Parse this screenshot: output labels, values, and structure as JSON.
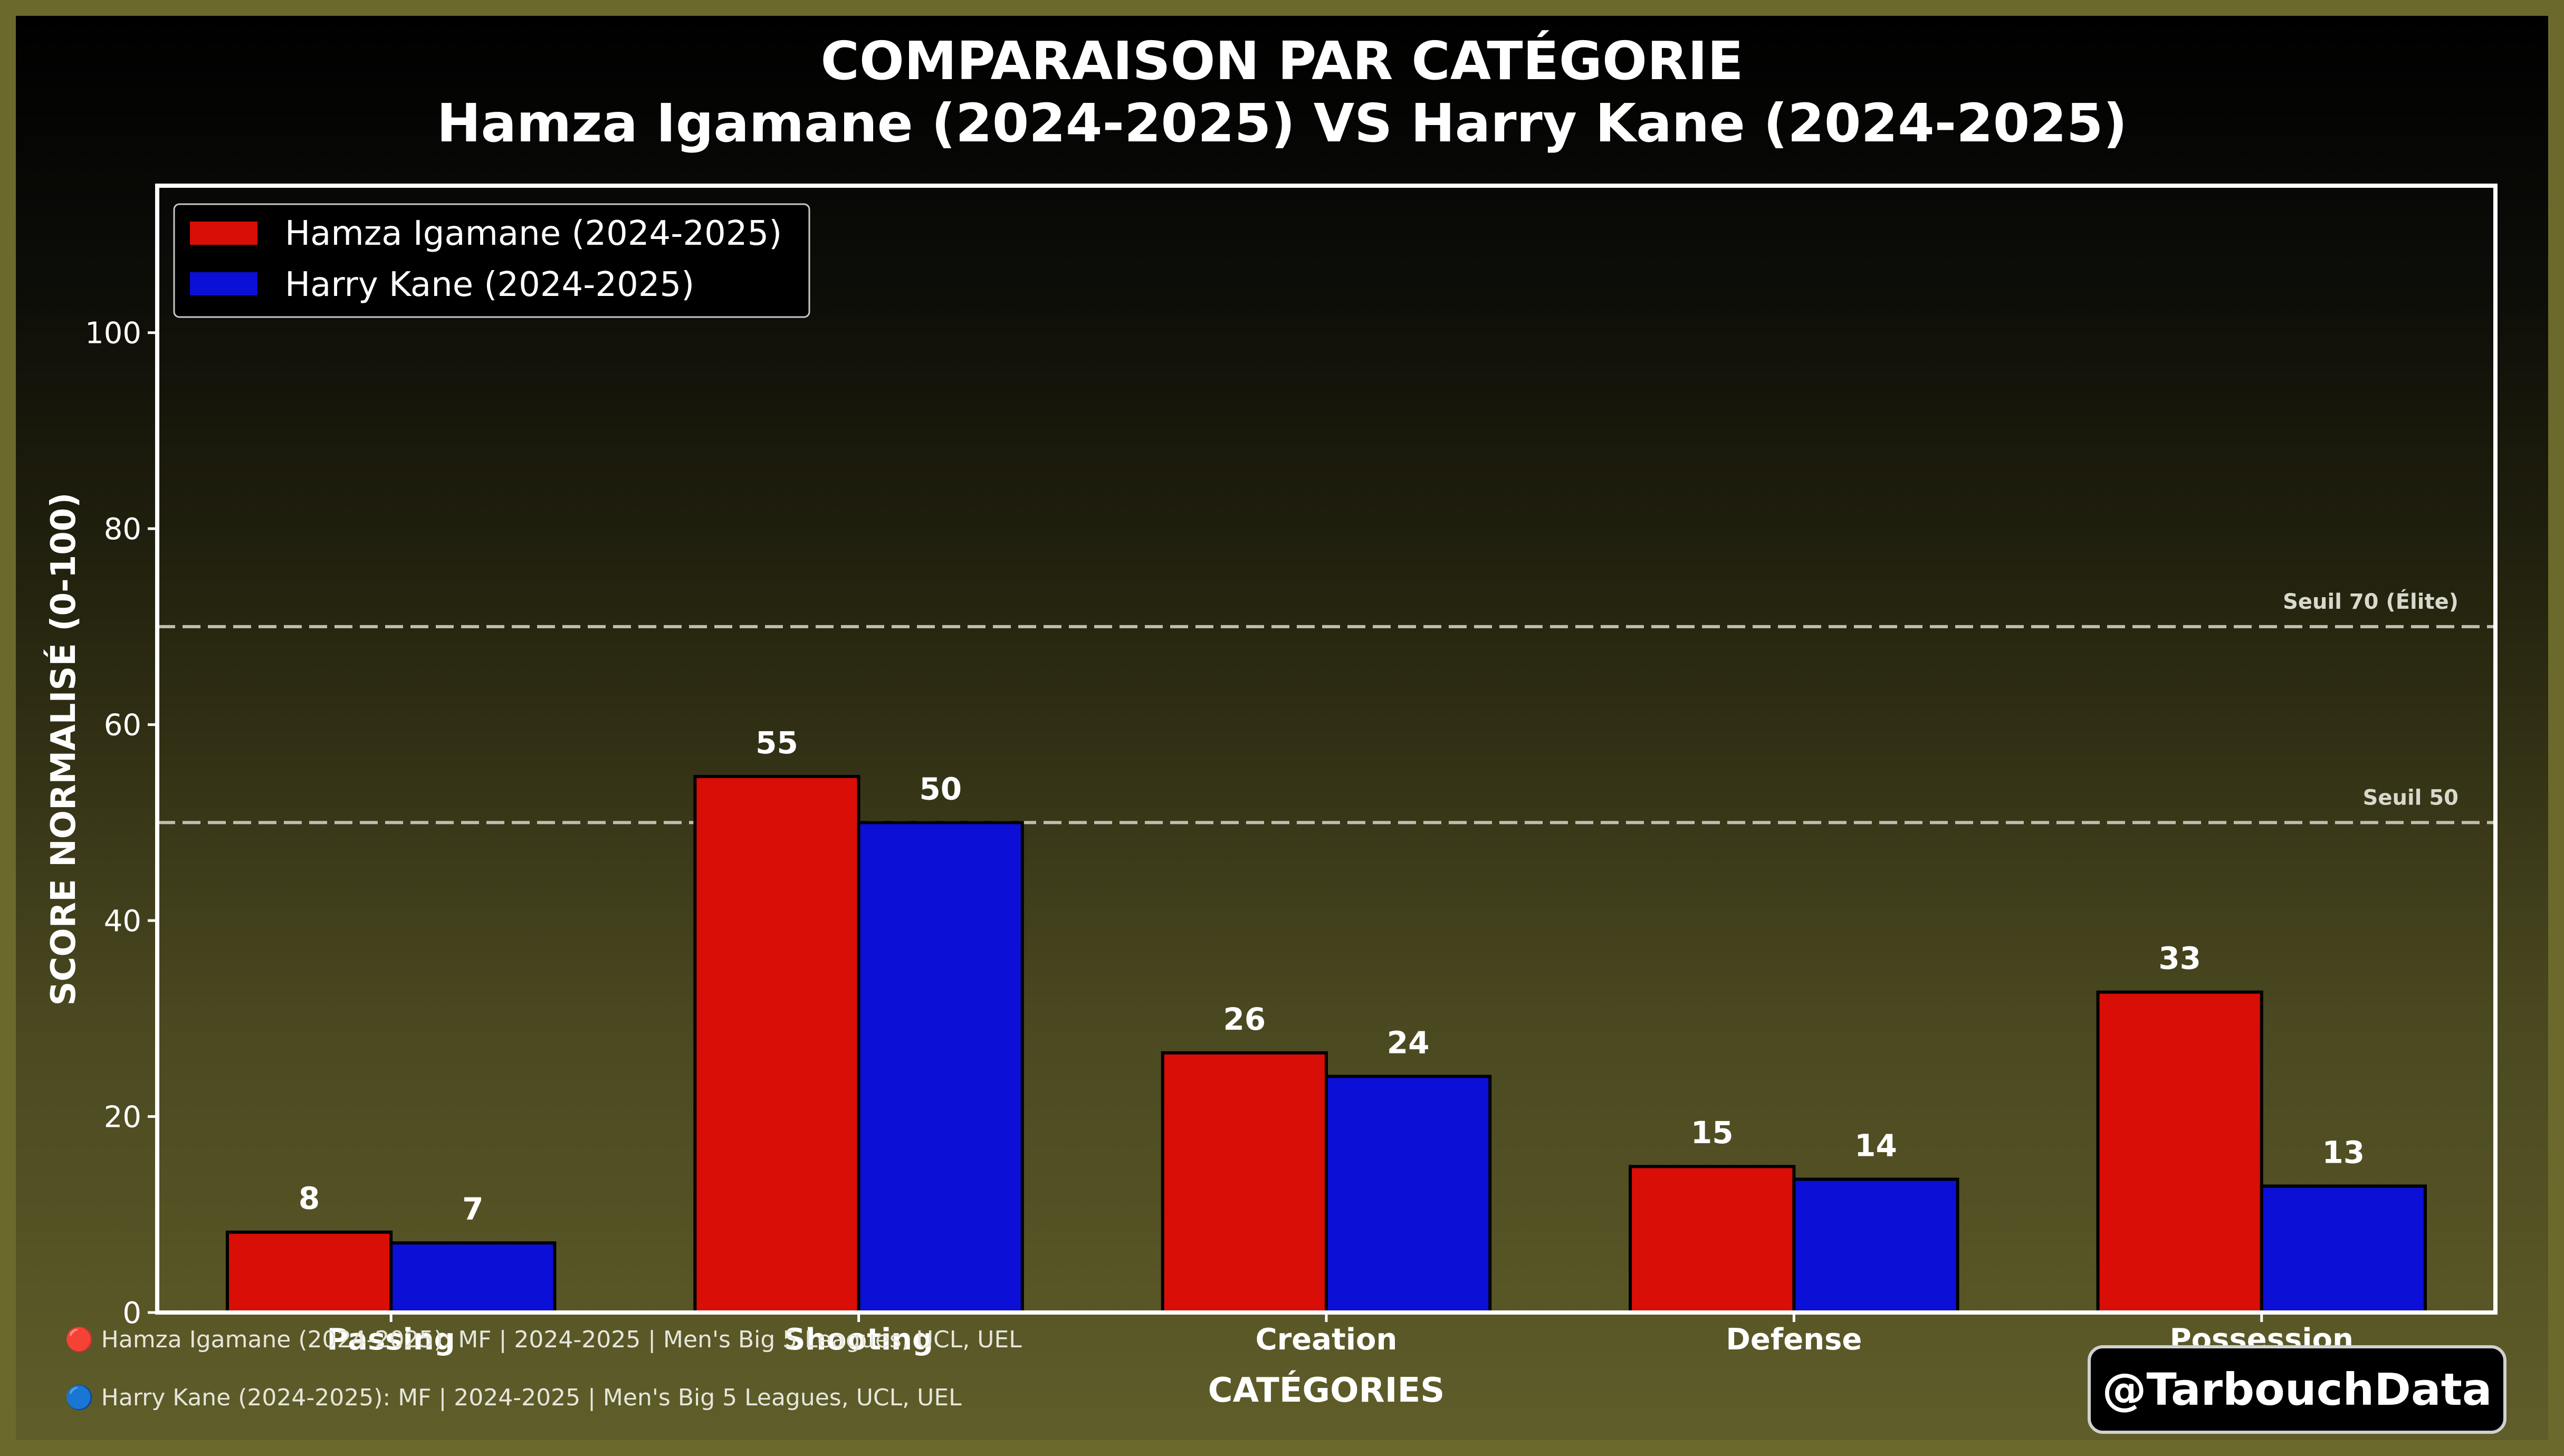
{
  "chart_data": {
    "type": "bar",
    "title": "COMPARAISON PAR CATÉGORIE",
    "subtitle": "Hamza Igamane (2024-2025) VS Harry Kane (2024-2025)",
    "xlabel": "CATÉGORIES",
    "ylabel": "SCORE NORMALISÉ (0-100)",
    "categories": [
      "Passing",
      "Shooting",
      "Creation",
      "Defense",
      "Possession"
    ],
    "series": [
      {
        "name": "Hamza Igamane (2024-2025)",
        "color": "#d90e07",
        "values": [
          8.2,
          54.7,
          26.5,
          14.9,
          32.7
        ],
        "labels": [
          "8",
          "55",
          "26",
          "15",
          "33"
        ]
      },
      {
        "name": "Harry Kane (2024-2025)",
        "color": "#0c0fd6",
        "values": [
          7.1,
          50.0,
          24.1,
          13.6,
          12.9
        ],
        "labels": [
          "7",
          "50",
          "24",
          "14",
          "13"
        ]
      }
    ],
    "ylim": [
      0,
      115
    ],
    "yticks": [
      "0",
      "20",
      "40",
      "60",
      "80",
      "100"
    ],
    "ytick_values": [
      0,
      20,
      40,
      60,
      80,
      100
    ],
    "reference_lines": [
      {
        "value": 70,
        "label": "Seuil 70 (Élite)"
      },
      {
        "value": 50,
        "label": "Seuil 50"
      }
    ],
    "legend_position": "top-left",
    "grid": false
  },
  "footnotes": [
    "🔴 Hamza Igamane (2024-2025): MF | 2024-2025 | Men's Big 5 Leagues, UCL, UEL",
    "🔵 Harry Kane (2024-2025): MF | 2024-2025 | Men's Big 5 Leagues, UCL, UEL"
  ],
  "watermark": "@TarbouchData",
  "colors": {
    "background": "#6b6a2c",
    "axes_frame": "#ffffff",
    "reference_line": "#bdbdb0"
  }
}
